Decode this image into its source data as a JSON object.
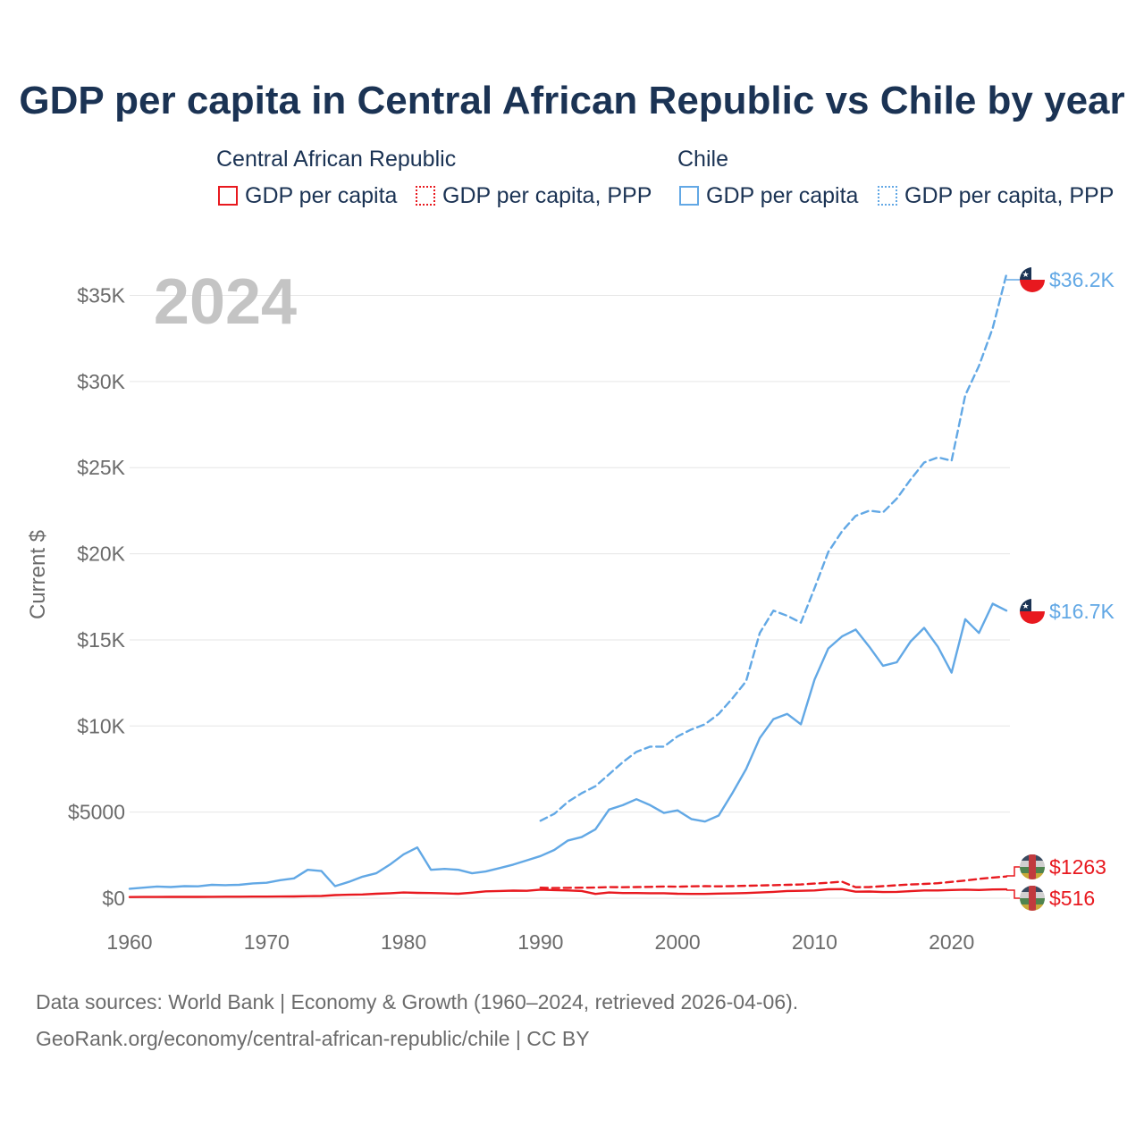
{
  "page": {
    "title": "GDP per capita in Central African Republic vs Chile by year",
    "footer_line1": "Data sources: World Bank | Economy & Growth (1960–2024, retrieved 2026-04-06).",
    "footer_line2": "GeoRank.org/economy/central-african-republic/chile | CC BY"
  },
  "legend": {
    "groups": [
      {
        "name": "Central African Republic",
        "color": "#e8191f",
        "items": [
          {
            "label": "GDP per capita",
            "style": "solid"
          },
          {
            "label": "GDP per capita, PPP",
            "style": "dotted"
          }
        ]
      },
      {
        "name": "Chile",
        "color": "#62a8e5",
        "items": [
          {
            "label": "GDP per capita",
            "style": "solid"
          },
          {
            "label": "GDP per capita, PPP",
            "style": "dotted"
          }
        ]
      }
    ]
  },
  "chart_data": {
    "type": "line",
    "title": "GDP per capita in Central African Republic vs Chile by year",
    "year_label": "2024",
    "xlabel": "",
    "ylabel": "Current $",
    "xlim": [
      1960,
      2024
    ],
    "ylim": [
      0,
      37000
    ],
    "x_ticks": [
      1960,
      1970,
      1980,
      1990,
      2000,
      2010,
      2020
    ],
    "y_ticks": [
      0,
      5000,
      10000,
      15000,
      20000,
      25000,
      30000,
      35000
    ],
    "y_tick_labels": [
      "$0",
      "$5000",
      "$10K",
      "$15K",
      "$20K",
      "$25K",
      "$30K",
      "$35K"
    ],
    "grid": true,
    "series": [
      {
        "name": "Chile GDP per capita",
        "country": "Chile",
        "color": "#62a8e5",
        "dash": "solid",
        "end_label": "$16.7K",
        "start_year": 1960,
        "values": [
          550,
          610,
          680,
          650,
          700,
          690,
          780,
          760,
          780,
          860,
          900,
          1050,
          1150,
          1650,
          1580,
          700,
          950,
          1250,
          1450,
          1950,
          2550,
          2950,
          1650,
          1700,
          1650,
          1450,
          1550,
          1750,
          1950,
          2200,
          2450,
          2800,
          3350,
          3550,
          4000,
          5150,
          5400,
          5750,
          5400,
          4950,
          5100,
          4600,
          4450,
          4800,
          6100,
          7500,
          9300,
          10400,
          10700,
          10100,
          12700,
          14500,
          15200,
          15600,
          14600,
          13500,
          13700,
          14900,
          15700,
          14600,
          13100,
          16200,
          15400,
          17100,
          16700
        ]
      },
      {
        "name": "Chile GDP per capita, PPP",
        "country": "Chile",
        "color": "#62a8e5",
        "dash": "dashed",
        "end_label": "$36.2K",
        "start_year": 1990,
        "values": [
          4500,
          4900,
          5600,
          6100,
          6500,
          7200,
          7900,
          8500,
          8800,
          8800,
          9400,
          9800,
          10100,
          10700,
          11600,
          12600,
          15400,
          16700,
          16400,
          16000,
          18000,
          20100,
          21300,
          22200,
          22500,
          22400,
          23200,
          24300,
          25300,
          25600,
          25400,
          29200,
          30900,
          33100,
          36200
        ]
      },
      {
        "name": "Central African Republic GDP per capita",
        "country": "Central African Republic",
        "color": "#e8191f",
        "dash": "solid",
        "end_label": "$516",
        "start_year": 1960,
        "values": [
          70,
          72,
          74,
          76,
          78,
          80,
          85,
          88,
          90,
          92,
          95,
          100,
          105,
          120,
          130,
          180,
          200,
          220,
          260,
          290,
          330,
          310,
          300,
          280,
          260,
          320,
          400,
          420,
          440,
          430,
          500,
          470,
          450,
          420,
          250,
          330,
          300,
          300,
          290,
          290,
          260,
          250,
          250,
          270,
          280,
          300,
          330,
          370,
          420,
          430,
          450,
          520,
          530,
          380,
          390,
          360,
          370,
          410,
          450,
          450,
          480,
          500,
          480,
          510,
          516
        ]
      },
      {
        "name": "Central African Republic GDP per capita, PPP",
        "country": "Central African Republic",
        "color": "#e8191f",
        "dash": "dashed",
        "end_label": "$1263",
        "start_year": 1990,
        "values": [
          610,
          590,
          600,
          610,
          620,
          650,
          640,
          650,
          660,
          680,
          670,
          690,
          700,
          690,
          700,
          720,
          740,
          760,
          780,
          800,
          850,
          900,
          960,
          640,
          650,
          700,
          750,
          800,
          830,
          870,
          950,
          1030,
          1120,
          1200,
          1263
        ]
      }
    ]
  }
}
